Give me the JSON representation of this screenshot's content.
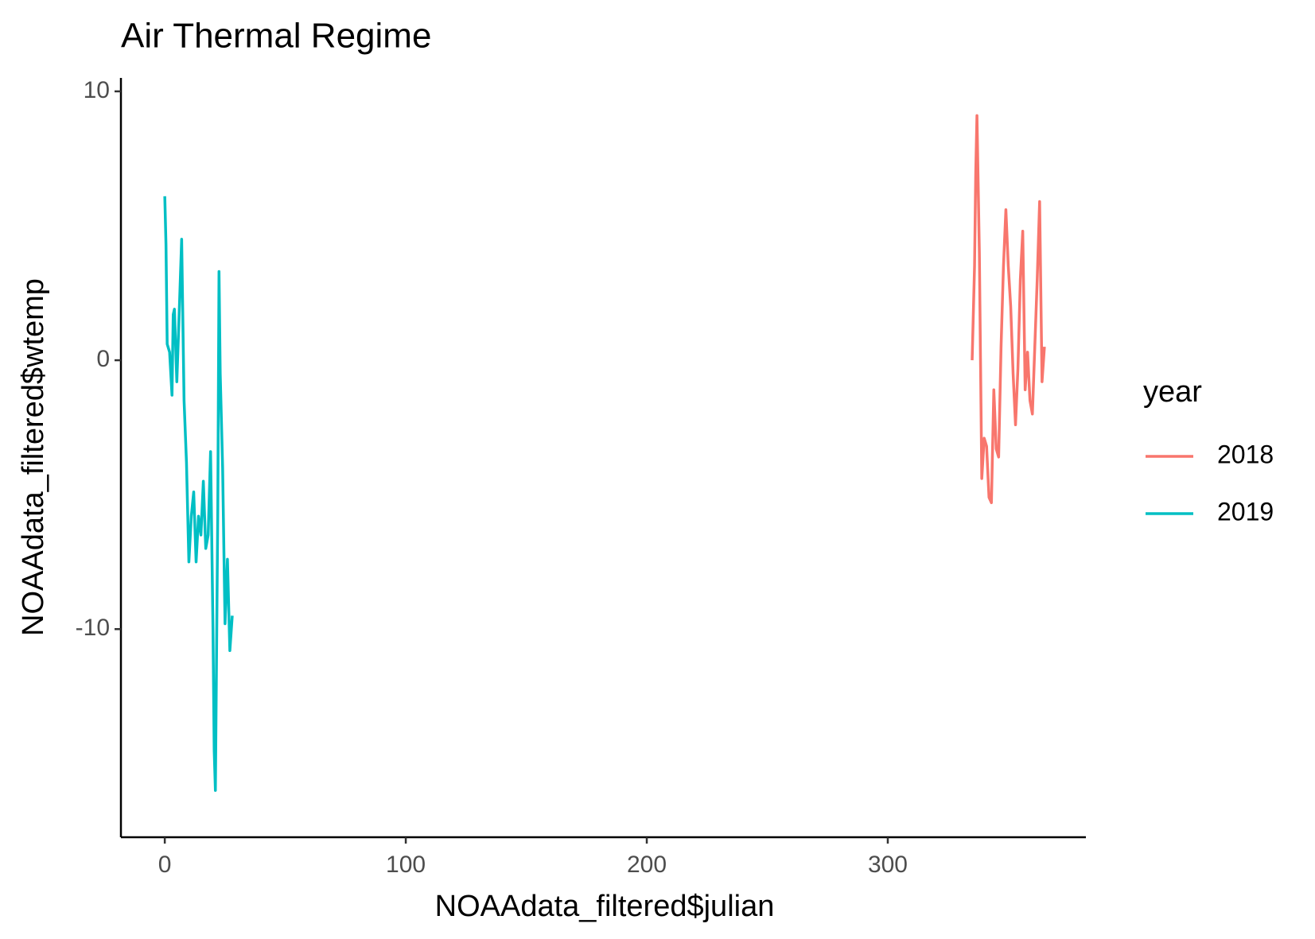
{
  "chart_data": {
    "type": "line",
    "title": "Air Thermal Regime",
    "x_label": "NOAAdata_filtered$julian",
    "y_label": "NOAAdata_filtered$wtemp",
    "legend_title": "year",
    "xlim": [
      -18.2,
      382.2
    ],
    "ylim": [
      -17.74,
      10.5
    ],
    "xticks": [
      0,
      100,
      200,
      300
    ],
    "yticks": [
      -10,
      0,
      10
    ],
    "series": [
      {
        "name": "2018",
        "color": "#F8766D",
        "x": [
          335,
          336,
          336.5,
          337,
          338,
          339,
          340,
          341,
          342,
          343,
          344,
          345,
          346,
          347,
          348,
          349,
          350,
          351,
          352,
          353,
          354,
          355,
          356,
          357,
          358,
          359,
          360,
          361,
          362,
          363,
          364,
          365
        ],
        "values": [
          0.0,
          3.5,
          7.0,
          9.1,
          4.0,
          -4.4,
          -2.9,
          -3.2,
          -5.1,
          -5.3,
          -1.1,
          -3.3,
          -3.6,
          0.5,
          3.5,
          5.6,
          3.5,
          2.0,
          -0.5,
          -2.4,
          -0.3,
          3.0,
          4.8,
          -1.1,
          0.3,
          -1.5,
          -2.0,
          0.5,
          3.0,
          5.9,
          -0.8,
          0.5
        ]
      },
      {
        "name": "2019",
        "color": "#00BFC4",
        "x": [
          0,
          0.5,
          1,
          2,
          3,
          3.5,
          4,
          5,
          6,
          7,
          8,
          9,
          10,
          11,
          12,
          13,
          14,
          15,
          16,
          17,
          18,
          19,
          20,
          20.5,
          21,
          22,
          22.5,
          23,
          24,
          25,
          26,
          27,
          28
        ],
        "values": [
          6.1,
          4.3,
          0.6,
          0.3,
          -1.3,
          1.7,
          1.9,
          -0.8,
          1.8,
          4.5,
          -1.5,
          -3.8,
          -7.5,
          -5.8,
          -4.9,
          -7.5,
          -5.8,
          -6.5,
          -4.5,
          -7.0,
          -6.5,
          -3.4,
          -10.0,
          -14.5,
          -16.0,
          -5.5,
          3.3,
          -0.5,
          -4.0,
          -9.8,
          -7.4,
          -10.8,
          -9.5
        ]
      }
    ]
  }
}
